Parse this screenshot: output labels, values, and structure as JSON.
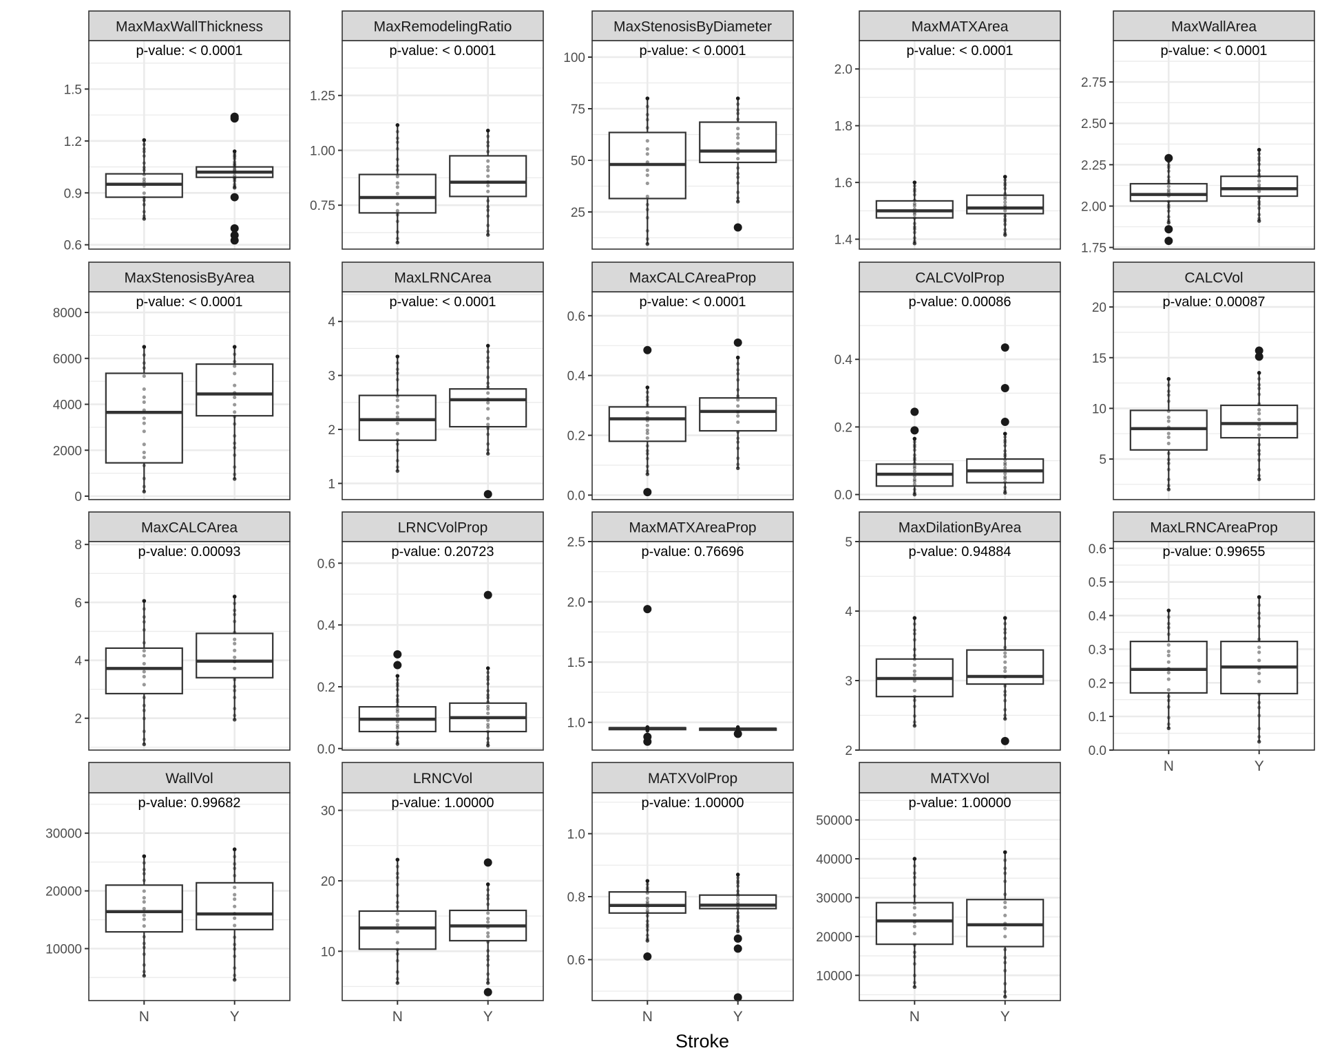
{
  "chart_data": {
    "type": "box",
    "xlabel": "Stroke",
    "categories": [
      "N",
      "Y"
    ],
    "colors": {
      "strip_fill": "#d9d9d9",
      "box_stroke": "#333333",
      "point": "#1a1a1a",
      "grid": "#ebebeb",
      "panel_border": "#333333"
    },
    "panels": [
      {
        "title": "MaxMaxWallThickness",
        "pvalue": "p-value: < 0.0001",
        "ylim": [
          0.575,
          1.78
        ],
        "yticks": [
          0.6,
          0.9,
          1.2,
          1.5
        ],
        "ytick_labels": [
          "0.6",
          "0.9",
          "1.2",
          "1.5"
        ],
        "boxes": [
          {
            "q1": 0.875,
            "median": 0.95,
            "q3": 1.01,
            "lo": 0.75,
            "hi": 1.205,
            "outliers": []
          },
          {
            "q1": 0.99,
            "median": 1.02,
            "q3": 1.05,
            "lo": 0.93,
            "hi": 1.14,
            "outliers": [
              1.33,
              1.34,
              0.875,
              0.695,
              0.655,
              0.625
            ]
          }
        ]
      },
      {
        "title": "MaxRemodelingRatio",
        "pvalue": "p-value: < 0.0001",
        "ylim": [
          0.55,
          1.5
        ],
        "yticks": [
          0.75,
          1.0,
          1.25
        ],
        "ytick_labels": [
          "0.75",
          "1.00",
          "1.25"
        ],
        "boxes": [
          {
            "q1": 0.715,
            "median": 0.785,
            "q3": 0.89,
            "lo": 0.58,
            "hi": 1.115,
            "outliers": []
          },
          {
            "q1": 0.79,
            "median": 0.855,
            "q3": 0.975,
            "lo": 0.615,
            "hi": 1.09,
            "outliers": []
          }
        ]
      },
      {
        "title": "MaxStenosisByDiameter",
        "pvalue": "p-value: < 0.0001",
        "ylim": [
          7,
          108
        ],
        "yticks": [
          25,
          50,
          75,
          100
        ],
        "ytick_labels": [
          "25",
          "50",
          "75",
          "100"
        ],
        "boxes": [
          {
            "q1": 31.5,
            "median": 48,
            "q3": 63.5,
            "lo": 9.5,
            "hi": 80,
            "outliers": []
          },
          {
            "q1": 49,
            "median": 54.5,
            "q3": 68.5,
            "lo": 30,
            "hi": 80,
            "outliers": [
              17.5
            ]
          }
        ]
      },
      {
        "title": "MaxMATXArea",
        "pvalue": "p-value: < 0.0001",
        "ylim": [
          1.365,
          2.1
        ],
        "yticks": [
          1.4,
          1.6,
          1.8,
          2.0
        ],
        "ytick_labels": [
          "1.4",
          "1.6",
          "1.8",
          "2.0"
        ],
        "boxes": [
          {
            "q1": 1.475,
            "median": 1.5,
            "q3": 1.535,
            "lo": 1.385,
            "hi": 1.6,
            "outliers": []
          },
          {
            "q1": 1.49,
            "median": 1.51,
            "q3": 1.555,
            "lo": 1.415,
            "hi": 1.62,
            "outliers": []
          }
        ]
      },
      {
        "title": "MaxWallArea",
        "pvalue": "p-value: < 0.0001",
        "ylim": [
          1.74,
          3.0
        ],
        "yticks": [
          1.75,
          2.0,
          2.25,
          2.5,
          2.75
        ],
        "ytick_labels": [
          "1.75",
          "2.00",
          "2.25",
          "2.50",
          "2.75"
        ],
        "boxes": [
          {
            "q1": 2.03,
            "median": 2.07,
            "q3": 2.135,
            "lo": 1.9,
            "hi": 2.29,
            "outliers": [
              2.29,
              1.86,
              1.79
            ]
          },
          {
            "q1": 2.06,
            "median": 2.105,
            "q3": 2.18,
            "lo": 1.91,
            "hi": 2.34,
            "outliers": []
          }
        ]
      },
      {
        "title": "MaxStenosisByArea",
        "pvalue": "p-value: < 0.0001",
        "ylim": [
          -150,
          8900
        ],
        "yticks": [
          0,
          2000,
          4000,
          6000,
          8000
        ],
        "ytick_labels": [
          "0",
          "2000",
          "4000",
          "6000",
          "8000"
        ],
        "boxes": [
          {
            "q1": 1450,
            "median": 3650,
            "q3": 5350,
            "lo": 200,
            "hi": 6500,
            "outliers": []
          },
          {
            "q1": 3500,
            "median": 4450,
            "q3": 5750,
            "lo": 750,
            "hi": 6500,
            "outliers": []
          }
        ]
      },
      {
        "title": "MaxLRNCArea",
        "pvalue": "p-value: < 0.0001",
        "ylim": [
          0.7,
          4.55
        ],
        "yticks": [
          1,
          2,
          3,
          4
        ],
        "ytick_labels": [
          "1",
          "2",
          "3",
          "4"
        ],
        "boxes": [
          {
            "q1": 1.8,
            "median": 2.18,
            "q3": 2.63,
            "lo": 1.23,
            "hi": 3.35,
            "outliers": []
          },
          {
            "q1": 2.05,
            "median": 2.55,
            "q3": 2.75,
            "lo": 1.55,
            "hi": 3.55,
            "outliers": [
              0.8
            ]
          }
        ]
      },
      {
        "title": "MaxCALCAreaProp",
        "pvalue": "p-value: < 0.0001",
        "ylim": [
          -0.015,
          0.68
        ],
        "yticks": [
          0.0,
          0.2,
          0.4,
          0.6
        ],
        "ytick_labels": [
          "0.0",
          "0.2",
          "0.4",
          "0.6"
        ],
        "boxes": [
          {
            "q1": 0.18,
            "median": 0.255,
            "q3": 0.295,
            "lo": 0.07,
            "hi": 0.36,
            "outliers": [
              0.485,
              0.01
            ]
          },
          {
            "q1": 0.215,
            "median": 0.28,
            "q3": 0.325,
            "lo": 0.09,
            "hi": 0.46,
            "outliers": [
              0.51
            ]
          }
        ]
      },
      {
        "title": "CALCVolProp",
        "pvalue": "p-value: 0.00086",
        "ylim": [
          -0.015,
          0.6
        ],
        "yticks": [
          0.0,
          0.2,
          0.4
        ],
        "ytick_labels": [
          "0.0",
          "0.2",
          "0.4"
        ],
        "boxes": [
          {
            "q1": 0.025,
            "median": 0.06,
            "q3": 0.09,
            "lo": 0.0,
            "hi": 0.165,
            "outliers": [
              0.245,
              0.19
            ]
          },
          {
            "q1": 0.035,
            "median": 0.07,
            "q3": 0.105,
            "lo": 0.005,
            "hi": 0.18,
            "outliers": [
              0.435,
              0.315,
              0.215
            ]
          }
        ]
      },
      {
        "title": "CALCVol",
        "pvalue": "p-value: 0.00087",
        "ylim": [
          1.0,
          21.5
        ],
        "yticks": [
          5,
          10,
          15,
          20
        ],
        "ytick_labels": [
          "5",
          "10",
          "15",
          "20"
        ],
        "boxes": [
          {
            "q1": 5.9,
            "median": 8.0,
            "q3": 9.8,
            "lo": 2.0,
            "hi": 12.9,
            "outliers": []
          },
          {
            "q1": 7.1,
            "median": 8.5,
            "q3": 10.3,
            "lo": 3.0,
            "hi": 13.5,
            "outliers": [
              15.7,
              15.1
            ]
          }
        ]
      },
      {
        "title": "MaxCALCArea",
        "pvalue": "p-value: 0.00093",
        "ylim": [
          0.9,
          8.1
        ],
        "yticks": [
          2,
          4,
          6,
          8
        ],
        "ytick_labels": [
          "2",
          "4",
          "6",
          "8"
        ],
        "boxes": [
          {
            "q1": 2.85,
            "median": 3.72,
            "q3": 4.42,
            "lo": 1.1,
            "hi": 6.05,
            "outliers": []
          },
          {
            "q1": 3.4,
            "median": 3.97,
            "q3": 4.93,
            "lo": 1.95,
            "hi": 6.2,
            "outliers": []
          }
        ]
      },
      {
        "title": "LRNCVolProp",
        "pvalue": "p-value: 0.20723",
        "ylim": [
          -0.005,
          0.67
        ],
        "yticks": [
          0.0,
          0.2,
          0.4,
          0.6
        ],
        "ytick_labels": [
          "0.0",
          "0.2",
          "0.4",
          "0.6"
        ],
        "boxes": [
          {
            "q1": 0.055,
            "median": 0.095,
            "q3": 0.135,
            "lo": 0.015,
            "hi": 0.235,
            "outliers": [
              0.305,
              0.27
            ]
          },
          {
            "q1": 0.055,
            "median": 0.1,
            "q3": 0.147,
            "lo": 0.01,
            "hi": 0.26,
            "outliers": [
              0.497
            ]
          }
        ]
      },
      {
        "title": "MaxMATXAreaProp",
        "pvalue": "p-value: 0.76696",
        "ylim": [
          0.77,
          2.5
        ],
        "yticks": [
          1.0,
          1.5,
          2.0,
          2.5
        ],
        "ytick_labels": [
          "1.0",
          "1.5",
          "2.0",
          "2.5"
        ],
        "boxes": [
          {
            "q1": 0.94,
            "median": 0.95,
            "q3": 0.955,
            "lo": 0.93,
            "hi": 0.96,
            "outliers": [
              1.94,
              0.88,
              0.84
            ]
          },
          {
            "q1": 0.935,
            "median": 0.945,
            "q3": 0.95,
            "lo": 0.93,
            "hi": 0.96,
            "outliers": [
              0.905
            ]
          }
        ]
      },
      {
        "title": "MaxDilationByArea",
        "pvalue": "p-value: 0.94884",
        "ylim": [
          2.0,
          5.0
        ],
        "yticks": [
          2,
          3,
          4,
          5
        ],
        "ytick_labels": [
          "2",
          "3",
          "4",
          "5"
        ],
        "boxes": [
          {
            "q1": 2.77,
            "median": 3.03,
            "q3": 3.31,
            "lo": 2.35,
            "hi": 3.9,
            "outliers": []
          },
          {
            "q1": 2.95,
            "median": 3.06,
            "q3": 3.44,
            "lo": 2.45,
            "hi": 3.9,
            "outliers": [
              2.13
            ]
          }
        ]
      },
      {
        "title": "MaxLRNCAreaProp",
        "pvalue": "p-value: 0.99655",
        "ylim": [
          0.0,
          0.62
        ],
        "yticks": [
          0.0,
          0.1,
          0.2,
          0.3,
          0.4,
          0.5,
          0.6
        ],
        "ytick_labels": [
          "0.0",
          "0.1",
          "0.2",
          "0.3",
          "0.4",
          "0.5",
          "0.6"
        ],
        "boxes": [
          {
            "q1": 0.17,
            "median": 0.24,
            "q3": 0.323,
            "lo": 0.065,
            "hi": 0.415,
            "outliers": []
          },
          {
            "q1": 0.168,
            "median": 0.247,
            "q3": 0.323,
            "lo": 0.025,
            "hi": 0.455,
            "outliers": []
          }
        ]
      },
      {
        "title": "WallVol",
        "pvalue": "p-value: 0.99682",
        "ylim": [
          1000,
          37000
        ],
        "yticks": [
          10000,
          20000,
          30000
        ],
        "ytick_labels": [
          "10000",
          "20000",
          "30000"
        ],
        "boxes": [
          {
            "q1": 12900,
            "median": 16400,
            "q3": 21000,
            "lo": 5300,
            "hi": 26000,
            "outliers": []
          },
          {
            "q1": 13300,
            "median": 16000,
            "q3": 21400,
            "lo": 4600,
            "hi": 27200,
            "outliers": []
          }
        ]
      },
      {
        "title": "LRNCVol",
        "pvalue": "p-value: 1.00000",
        "ylim": [
          3.0,
          32.5
        ],
        "yticks": [
          10,
          20,
          30
        ],
        "ytick_labels": [
          "10",
          "20",
          "30"
        ],
        "boxes": [
          {
            "q1": 10.3,
            "median": 13.3,
            "q3": 15.7,
            "lo": 5.5,
            "hi": 23.0,
            "outliers": []
          },
          {
            "q1": 11.5,
            "median": 13.6,
            "q3": 15.8,
            "lo": 5.5,
            "hi": 19.5,
            "outliers": [
              22.6,
              4.2
            ]
          }
        ]
      },
      {
        "title": "MATXVol",
        "pvalue": "p-value: 1.00000",
        "ylim": [
          3500,
          57000
        ],
        "yticks": [
          10000,
          20000,
          30000,
          40000,
          50000
        ],
        "ytick_labels": [
          "10000",
          "20000",
          "30000",
          "40000",
          "50000"
        ],
        "boxes": [
          {
            "q1": 18000,
            "median": 24000,
            "q3": 28700,
            "lo": 7000,
            "hi": 40000,
            "outliers": []
          },
          {
            "q1": 17400,
            "median": 23000,
            "q3": 29500,
            "lo": 4500,
            "hi": 41700,
            "outliers": []
          }
        ]
      },
      {
        "title": "MATXVolProp",
        "pvalue": "p-value: 1.00000",
        "ylim": [
          0.47,
          1.13
        ],
        "yticks": [
          0.6,
          0.8,
          1.0
        ],
        "ytick_labels": [
          "0.6",
          "0.8",
          "1.0"
        ],
        "boxes": [
          {
            "q1": 0.748,
            "median": 0.772,
            "q3": 0.815,
            "lo": 0.66,
            "hi": 0.85,
            "outliers": [
              0.61
            ]
          },
          {
            "q1": 0.762,
            "median": 0.773,
            "q3": 0.805,
            "lo": 0.69,
            "hi": 0.87,
            "outliers": [
              0.667,
              0.635,
              0.48
            ]
          }
        ]
      }
    ]
  }
}
